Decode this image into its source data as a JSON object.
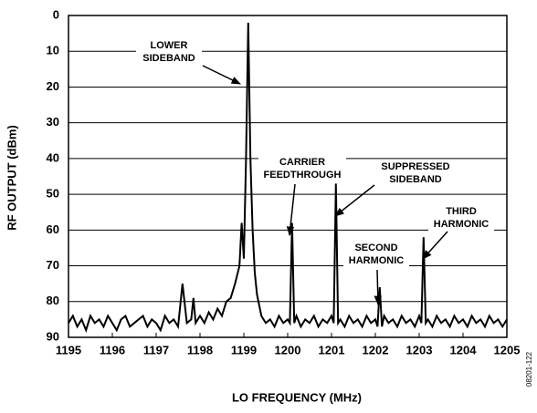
{
  "chart_data": {
    "type": "line",
    "xlabel": "LO FREQUENCY (MHz)",
    "ylabel": "RF OUTPUT (dBm)",
    "figure_id": "08201-122",
    "color": "#000000",
    "grid": true,
    "xlim": [
      1195,
      1205
    ],
    "xticks": [
      1195,
      1196,
      1197,
      1198,
      1199,
      1200,
      1201,
      1202,
      1203,
      1204,
      1205
    ],
    "ylim": [
      90,
      0
    ],
    "yticks": [
      0,
      10,
      20,
      30,
      40,
      50,
      60,
      70,
      80,
      90
    ],
    "x": [
      1195,
      1195.1,
      1195.2,
      1195.3,
      1195.4,
      1195.5,
      1195.6,
      1195.7,
      1195.8,
      1195.9,
      1196,
      1196.1,
      1196.2,
      1196.3,
      1196.4,
      1196.5,
      1196.6,
      1196.7,
      1196.8,
      1196.9,
      1197,
      1197.1,
      1197.2,
      1197.3,
      1197.4,
      1197.5,
      1197.6,
      1197.7,
      1197.8,
      1197.85,
      1197.9,
      1198,
      1198.1,
      1198.2,
      1198.3,
      1198.4,
      1198.5,
      1198.6,
      1198.7,
      1198.8,
      1198.9,
      1198.95,
      1199,
      1199.05,
      1199.1,
      1199.15,
      1199.2,
      1199.25,
      1199.3,
      1199.4,
      1199.5,
      1199.6,
      1199.7,
      1199.8,
      1199.9,
      1200,
      1200.05,
      1200.1,
      1200.15,
      1200.2,
      1200.3,
      1200.4,
      1200.5,
      1200.6,
      1200.7,
      1200.8,
      1200.9,
      1201,
      1201.05,
      1201.1,
      1201.15,
      1201.2,
      1201.3,
      1201.4,
      1201.5,
      1201.6,
      1201.7,
      1201.8,
      1201.9,
      1202,
      1202.05,
      1202.1,
      1202.15,
      1202.2,
      1202.3,
      1202.4,
      1202.5,
      1202.6,
      1202.7,
      1202.8,
      1202.9,
      1203,
      1203.05,
      1203.1,
      1203.15,
      1203.2,
      1203.3,
      1203.4,
      1203.5,
      1203.6,
      1203.7,
      1203.8,
      1203.9,
      1204,
      1204.1,
      1204.2,
      1204.3,
      1204.4,
      1204.5,
      1204.6,
      1204.7,
      1204.8,
      1204.9,
      1205
    ],
    "values": [
      86,
      84,
      87,
      85,
      88,
      84,
      86,
      85,
      87,
      84,
      86,
      88,
      85,
      84,
      87,
      86,
      85,
      84,
      87,
      85,
      86,
      88,
      84,
      86,
      85,
      87,
      75,
      86,
      85,
      79,
      86,
      84,
      86,
      83,
      85,
      82,
      84,
      80,
      79,
      75,
      70,
      58,
      68,
      40,
      2,
      40,
      60,
      72,
      78,
      84,
      86,
      85,
      87,
      84,
      86,
      85,
      86,
      58,
      86,
      84,
      87,
      85,
      86,
      84,
      87,
      85,
      86,
      84,
      86,
      47,
      86,
      85,
      87,
      84,
      86,
      85,
      87,
      84,
      86,
      85,
      87,
      76,
      87,
      84,
      86,
      85,
      87,
      84,
      86,
      85,
      87,
      84,
      86,
      62,
      86,
      85,
      87,
      84,
      86,
      85,
      87,
      84,
      86,
      85,
      87,
      84,
      86,
      85,
      87,
      84,
      86,
      85,
      87,
      85
    ],
    "annotations": [
      [
        "LOWER",
        "SIDEBAND"
      ],
      [
        "CARRIER",
        "FEEDTHROUGH"
      ],
      [
        "SUPPRESSED",
        "SIDEBAND"
      ],
      [
        "SECOND",
        "HARMONIC"
      ],
      [
        "THIRD",
        "HARMONIC"
      ]
    ]
  }
}
